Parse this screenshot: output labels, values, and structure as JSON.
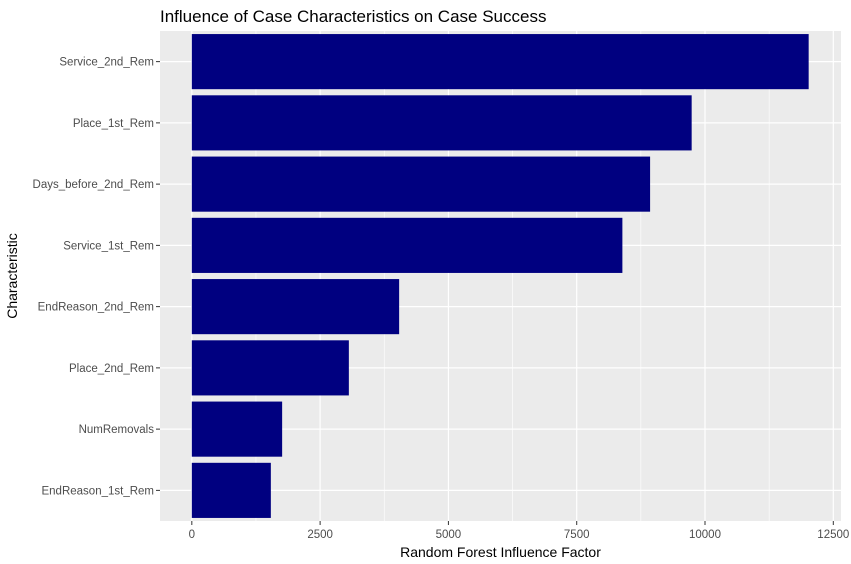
{
  "chart_data": {
    "type": "bar",
    "orientation": "horizontal",
    "title": "Influence of Case Characteristics on Case Success",
    "xlabel": "Random Forest Influence Factor",
    "ylabel": "Characteristic",
    "categories": [
      "Service_2nd_Rem",
      "Place_1st_Rem",
      "Days_before_2nd_Rem",
      "Service_1st_Rem",
      "EndReason_2nd_Rem",
      "Place_2nd_Rem",
      "NumRemovals",
      "EndReason_1st_Rem"
    ],
    "values": [
      12020,
      9740,
      8930,
      8390,
      4040,
      3060,
      1760,
      1540
    ],
    "xlim": [
      -620,
      12650
    ],
    "xticks": [
      0,
      2500,
      5000,
      7500,
      10000,
      12500
    ],
    "xtick_labels": [
      "0",
      "2500",
      "5000",
      "7500",
      "10000",
      "12500"
    ],
    "grid": true,
    "legend": "none",
    "colors": {
      "bar": "#000080",
      "panel": "#EBEBEB",
      "grid": "#FFFFFF"
    }
  }
}
